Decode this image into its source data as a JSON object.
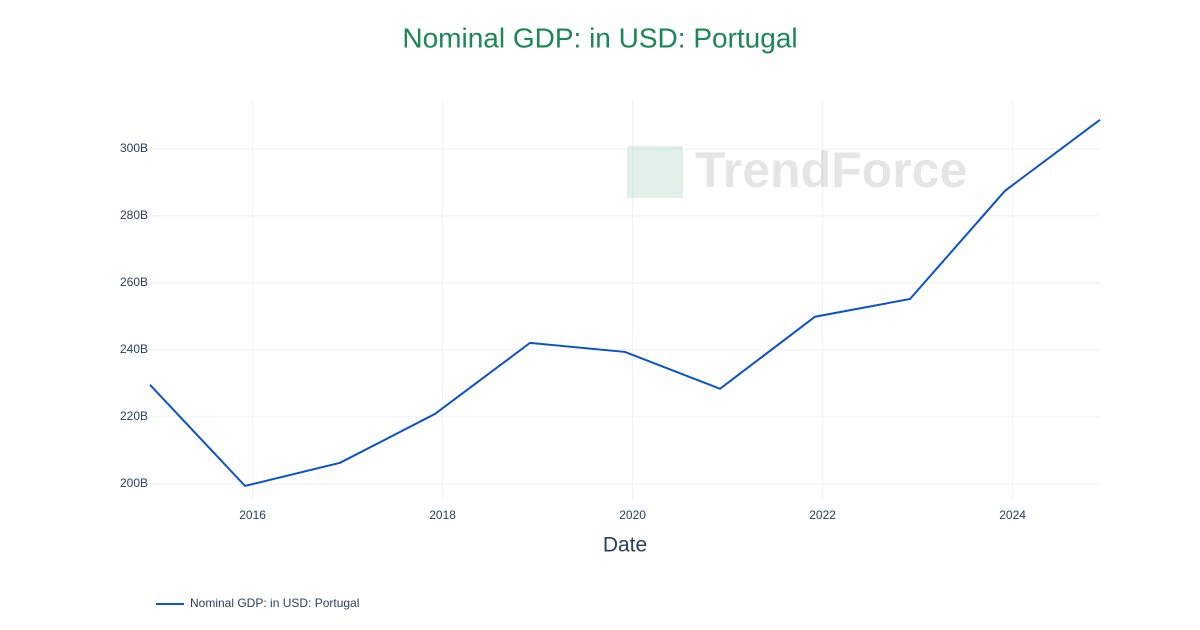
{
  "chart_data": {
    "type": "line",
    "title": "Nominal GDP: in USD: Portugal",
    "x_label": "Date",
    "watermark": "TrendForce",
    "x": [
      2014.92,
      2015.92,
      2016.92,
      2017.92,
      2018.92,
      2019.92,
      2020.92,
      2021.92,
      2022.92,
      2023.92,
      2024.92
    ],
    "series": [
      {
        "name": "Nominal GDP: in USD: Portugal",
        "color": "#0a52c8",
        "values": [
          229.6,
          199.4,
          206.3,
          220.9,
          242.1,
          239.4,
          228.4,
          249.9,
          255.2,
          287.5,
          308.7
        ]
      }
    ],
    "xlim": [
      2014.92,
      2024.92
    ],
    "xticks": [
      2016,
      2018,
      2020,
      2022,
      2024
    ],
    "ylim": [
      195.2,
      314.6
    ],
    "yticks": [
      {
        "value": 200,
        "label": "200B"
      },
      {
        "value": 220,
        "label": "220B"
      },
      {
        "value": 240,
        "label": "240B"
      },
      {
        "value": 260,
        "label": "260B"
      },
      {
        "value": 280,
        "label": "280B"
      },
      {
        "value": 300,
        "label": "300B"
      }
    ],
    "grid": true
  }
}
